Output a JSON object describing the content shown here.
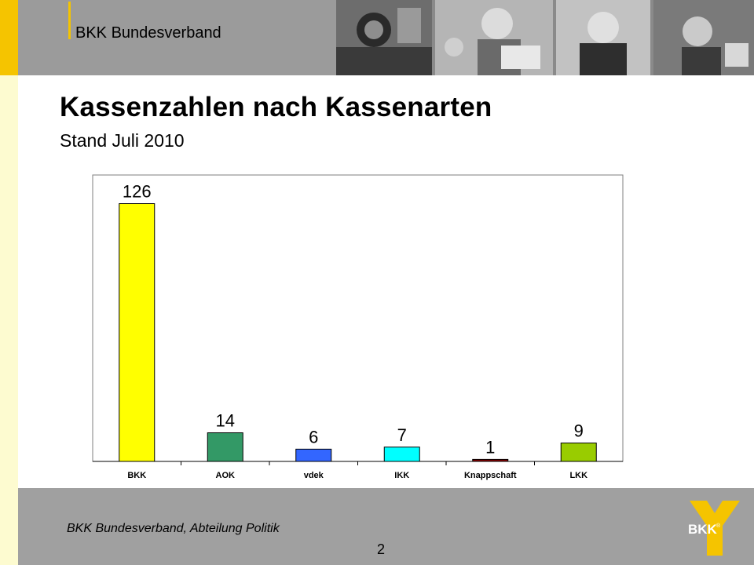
{
  "header": {
    "org_name": "BKK Bundesverband"
  },
  "slide": {
    "title": "Kassenzahlen nach Kassenarten",
    "subtitle": "Stand Juli 2010"
  },
  "footer": {
    "text": "BKK Bundesverband, Abteilung Politik",
    "page_number": "2"
  },
  "logo": {
    "text": "BKK",
    "mark": "®"
  },
  "colors": {
    "accent_yellow": "#f5c400",
    "header_gray": "#9b9b9b",
    "footer_gray": "#a0a0a0",
    "strip": "#fdfbd0"
  },
  "chart_data": {
    "type": "bar",
    "categories": [
      "BKK",
      "AOK",
      "vdek",
      "IKK",
      "Knappschaft",
      "LKK"
    ],
    "values": [
      126,
      14,
      6,
      7,
      1,
      9
    ],
    "colors": [
      "#ffff00",
      "#339966",
      "#3366ff",
      "#00ffff",
      "#800000",
      "#99cc00"
    ],
    "ylim": [
      0,
      140
    ],
    "grid": false,
    "legend": "none"
  }
}
